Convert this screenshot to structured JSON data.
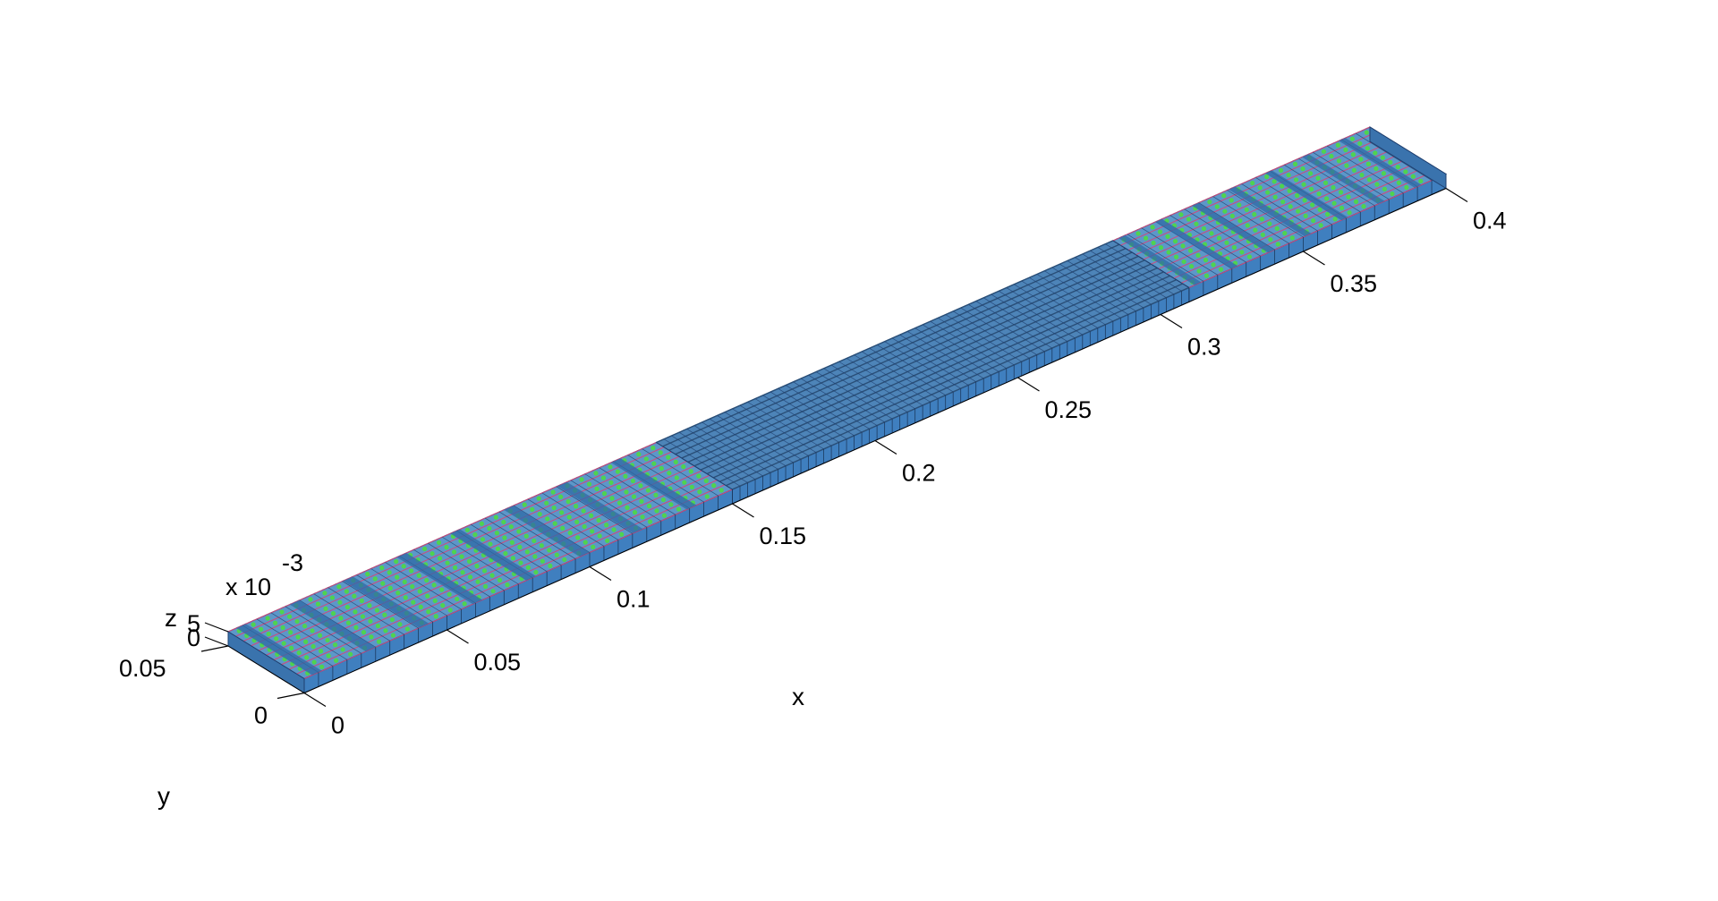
{
  "chart_data": {
    "type": "mesh3d",
    "view": "3d-perspective",
    "xlabel": "x",
    "ylabel": "y",
    "zlabel": "z",
    "x_ticks": [
      "0",
      "0.05",
      "0.1",
      "0.15",
      "0.2",
      "0.25",
      "0.3",
      "0.35",
      "0.4"
    ],
    "x_tick_values": [
      0,
      0.05,
      0.1,
      0.15,
      0.2,
      0.25,
      0.3,
      0.35,
      0.4
    ],
    "y_ticks": [
      "0",
      "0.05"
    ],
    "y_tick_values": [
      0,
      0.05
    ],
    "z_ticks": [
      "0",
      "5"
    ],
    "z_tick_values": [
      0,
      5
    ],
    "z_multiplier": "x 10",
    "z_exponent": "-3",
    "xlim": [
      0,
      0.4
    ],
    "ylim": [
      0,
      0.05
    ],
    "zlim": [
      0,
      0.005
    ],
    "grid": false,
    "regions": [
      {
        "style": "coarse",
        "x_range": [
          0,
          0.15
        ],
        "slabs": 8
      },
      {
        "style": "fine",
        "x_range": [
          0.15,
          0.31
        ],
        "slabs": 1
      },
      {
        "style": "coarse",
        "x_range": [
          0.31,
          0.4
        ],
        "slabs": 7
      }
    ],
    "colors": {
      "element_face": "#3f7fbf",
      "element_edge": "#1f3f6f",
      "node_marker": "#4fd34f",
      "edge_highlight": "#d04a7a",
      "axis": "#000000"
    }
  }
}
